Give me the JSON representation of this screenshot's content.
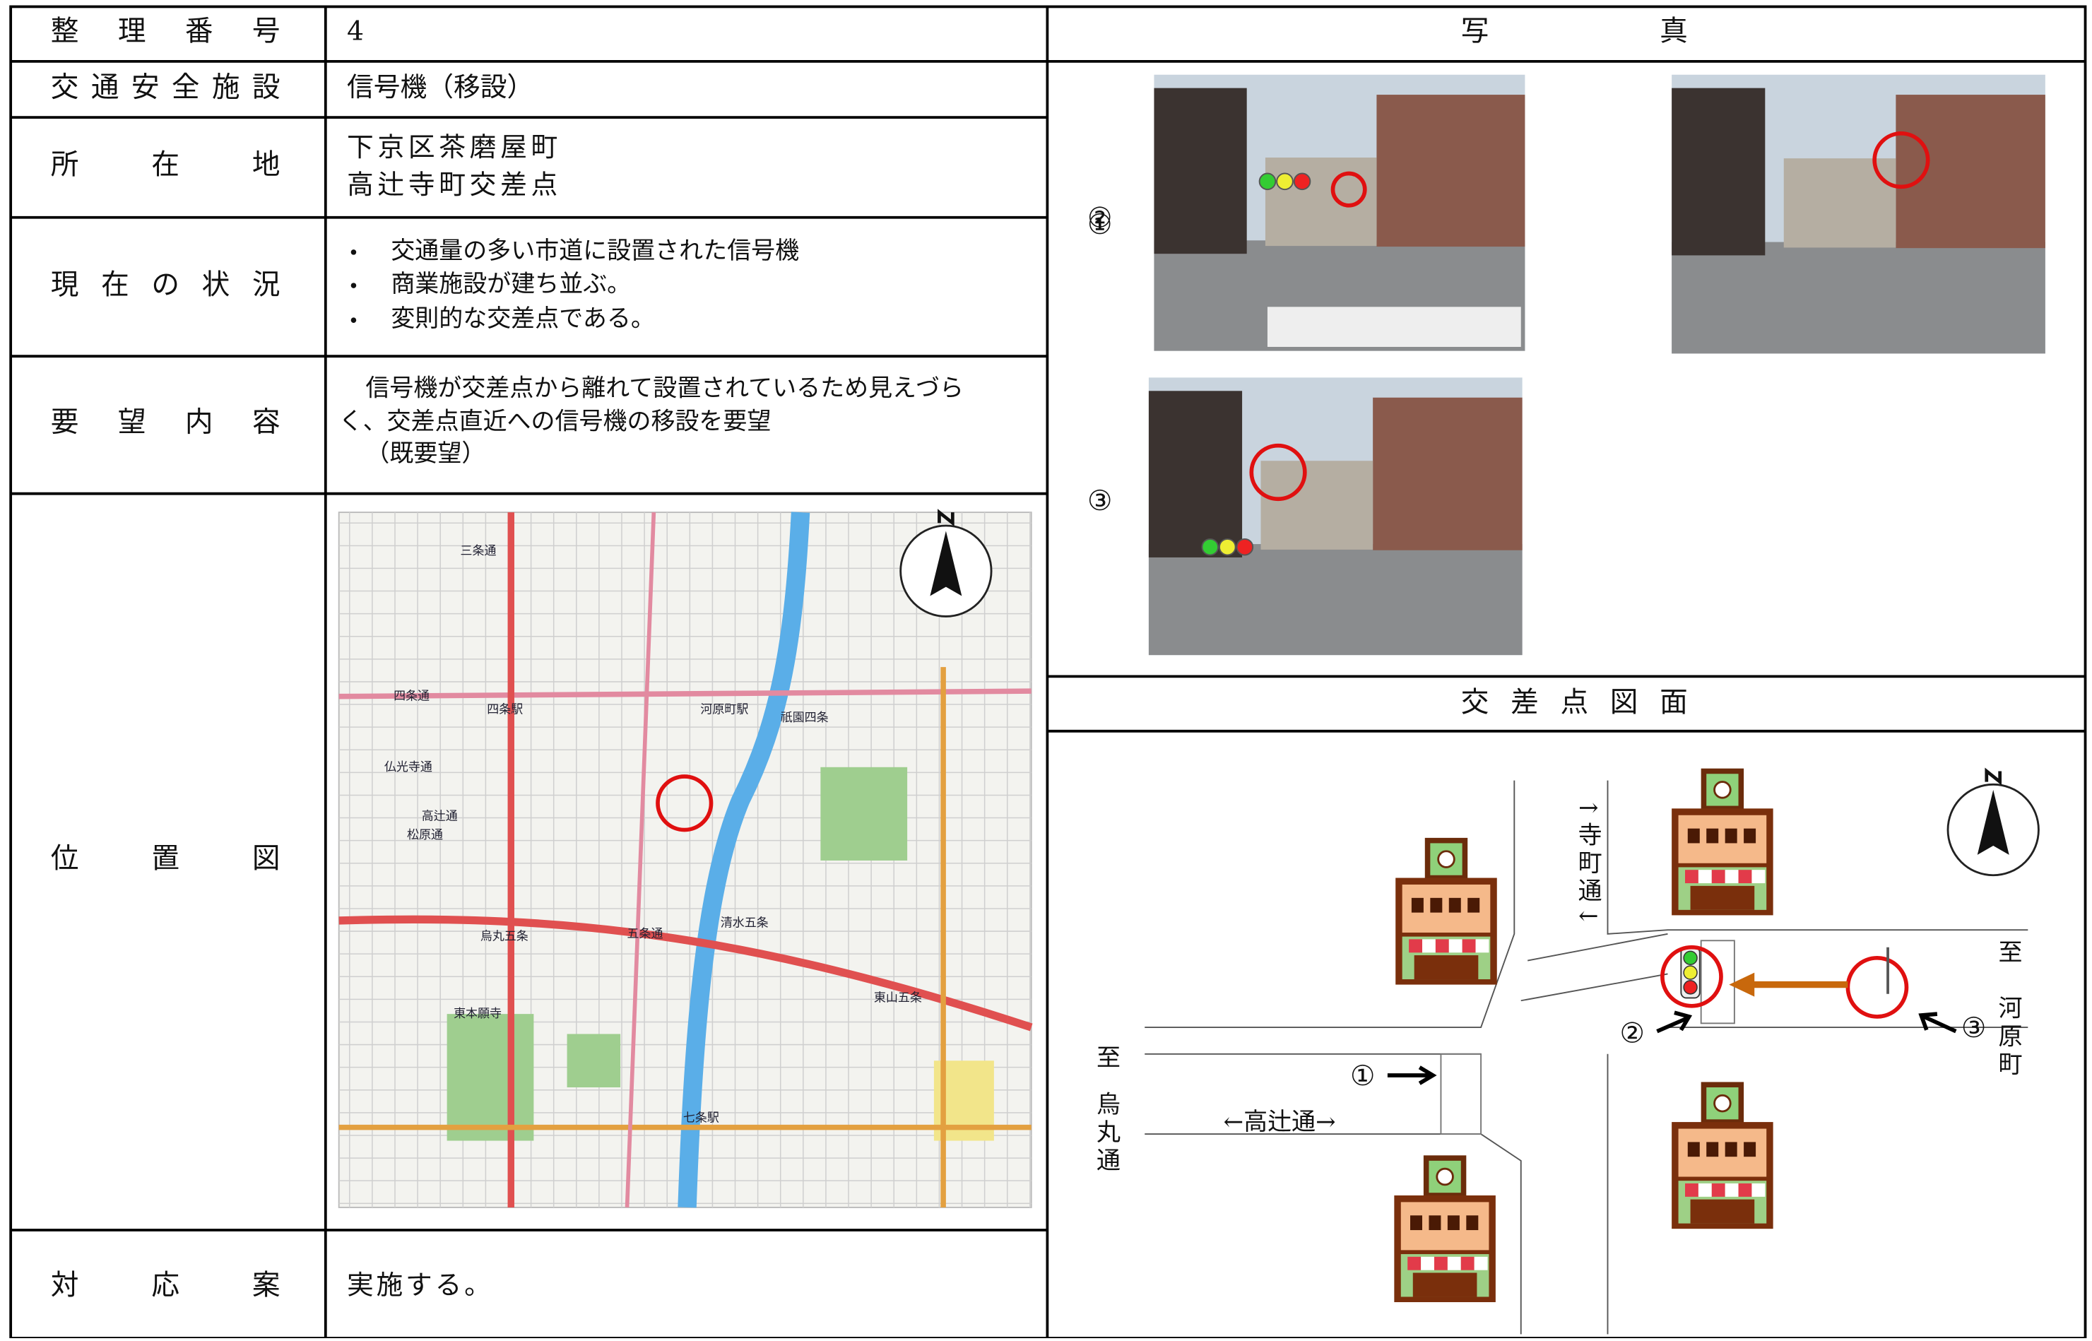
{
  "table": {
    "rows": [
      {
        "label": "整理番号",
        "value": "4"
      },
      {
        "label": "交通安全施設",
        "value": "信号機（移設）"
      },
      {
        "label": "所在地",
        "lines": [
          "下京区茶磨屋町",
          "高辻寺町交差点"
        ]
      },
      {
        "label": "現在の状況",
        "bullets": [
          "交通量の多い市道に設置された信号機",
          "商業施設が建ち並ぶ。",
          "変則的な交差点である。"
        ]
      },
      {
        "label": "要望内容",
        "lines": [
          "信号機が交差点から離れて設置されているため見えづら",
          "く、交差点直近への信号機の移設を要望",
          "（既要望）"
        ]
      },
      {
        "label": "位置図",
        "map_labels": [
          "三条通",
          "四条通",
          "四条駅",
          "仏光寺通",
          "高辻通",
          "松原通",
          "五条通",
          "河原町駅",
          "祇園四条",
          "清水五条",
          "七条駅",
          "東本願寺",
          "東山五条",
          "烏丸五条"
        ]
      },
      {
        "label": "対応案",
        "value": "実施する。"
      }
    ]
  },
  "photos": {
    "header": "写真",
    "items": [
      "①",
      "②",
      "③"
    ]
  },
  "diagram": {
    "header": "交差点図面",
    "street_north": "↑寺町通↓",
    "to_east": "至",
    "east_name": "河原町",
    "to_west": "至",
    "west_name": "烏丸通",
    "cross_street": "←高辻通→",
    "markers": [
      "①",
      "②",
      "③"
    ]
  }
}
